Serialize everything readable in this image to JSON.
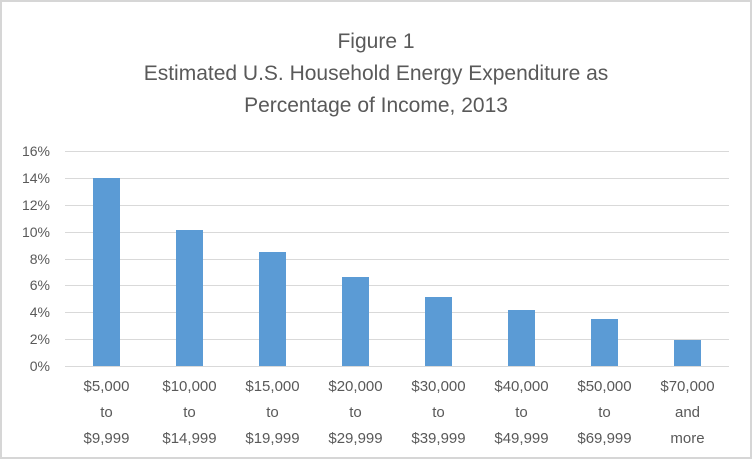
{
  "window": {
    "background_color": "#ffffff",
    "border_color": "#d6d6d6"
  },
  "title": {
    "lines": [
      "Figure 1",
      "Estimated U.S. Household Energy Expenditure as",
      "Percentage of Income, 2013"
    ]
  },
  "chart_data": {
    "type": "bar",
    "title": "Figure 1",
    "subtitle": "Estimated U.S. Household Energy Expenditure as Percentage of Income, 2013",
    "categories": [
      "$5,000 to $9,999",
      "$10,000 to $14,999",
      "$15,000 to $19,999",
      "$20,000 to $29,999",
      "$30,000 to $39,999",
      "$40,000 to $49,999",
      "$50,000 to $69,999",
      "$70,000 and more"
    ],
    "category_lines": [
      [
        "$5,000",
        "to",
        "$9,999"
      ],
      [
        "$10,000",
        "to",
        "$14,999"
      ],
      [
        "$15,000",
        "to",
        "$19,999"
      ],
      [
        "$20,000",
        "to",
        "$29,999"
      ],
      [
        "$30,000",
        "to",
        "$39,999"
      ],
      [
        "$40,000",
        "to",
        "$49,999"
      ],
      [
        "$50,000",
        "to",
        "$69,999"
      ],
      [
        "$70,000",
        "and",
        "more"
      ]
    ],
    "values": [
      14.0,
      10.1,
      8.5,
      6.6,
      5.1,
      4.2,
      3.5,
      1.9
    ],
    "unit": "%",
    "xlabel": "",
    "ylabel": "",
    "ylim": [
      0,
      16
    ],
    "ytick_step": 2,
    "ytick_labels": [
      "0%",
      "2%",
      "4%",
      "6%",
      "8%",
      "10%",
      "12%",
      "14%",
      "16%"
    ],
    "grid": true,
    "legend": false,
    "bar_color": "#5B9BD5",
    "gridline_color": "#D9D9D9",
    "axis_text_color": "#595959",
    "title_color": "#595959"
  }
}
